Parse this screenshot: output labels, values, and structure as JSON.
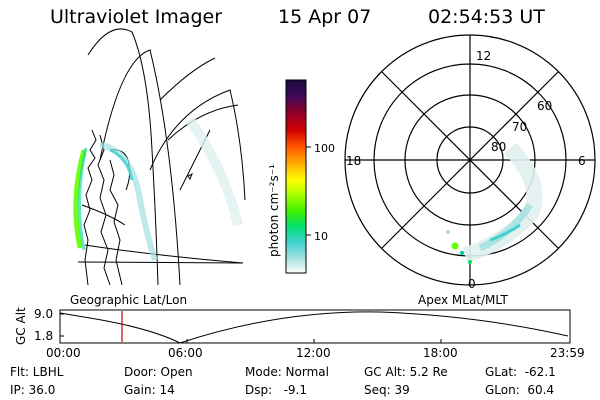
{
  "header": {
    "instrument": "Ultraviolet Imager",
    "date": "15 Apr 07",
    "time": "02:54:53 UT"
  },
  "map_panel": {
    "label": "Geographic Lat/Lon"
  },
  "colorbar": {
    "label": "photon cm⁻²s⁻¹",
    "ticks": [
      "100",
      "10"
    ],
    "colors": [
      "#1a0a3a",
      "#3a0a5a",
      "#6a0a6a",
      "#9a0020",
      "#d00000",
      "#ff4000",
      "#ff8000",
      "#ffc000",
      "#ffff00",
      "#c0ff00",
      "#60ff00",
      "#00e060",
      "#00d0a0",
      "#40d0d0",
      "#a0e0e0",
      "#e0f0f0"
    ]
  },
  "polar_panel": {
    "label": "Apex MLat/MLT",
    "mlt_labels": {
      "top": "12",
      "bottom": "0",
      "left": "18",
      "right": "6"
    },
    "lat_labels": [
      "60",
      "70",
      "80"
    ]
  },
  "timeline": {
    "y_axis_label": "GC Alt",
    "y_ticks": [
      "9.0",
      "1.8"
    ],
    "x_ticks": [
      "00:00",
      "06:00",
      "12:00",
      "18:00",
      "23:59"
    ],
    "marker_color": "#cc0000",
    "marker_time": "02:54:53"
  },
  "info": {
    "flt": "Flt: LBHL",
    "ip": "IP: 36.0",
    "door": "Door: Open",
    "gain": "Gain: 14",
    "mode": "Mode: Normal",
    "dsp": "Dsp:   -9.1",
    "gc_alt": "GC Alt: 5.2 Re",
    "seq": "Seq: 39",
    "glat": "GLat:  -62.1",
    "glon": "GLon:  60.4"
  }
}
